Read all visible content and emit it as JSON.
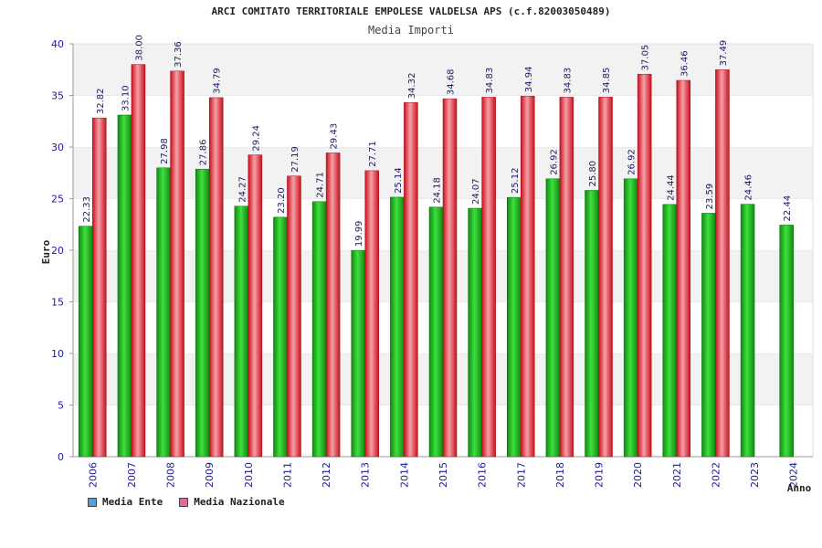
{
  "chart_data": {
    "type": "bar",
    "title": "ARCI COMITATO TERRITORIALE EMPOLESE VALDELSA APS (c.f.82003050489)",
    "subtitle": "Media Importi",
    "xlabel": "Anno",
    "ylabel": "Euro",
    "ylim": [
      0,
      40
    ],
    "yticks": [
      0,
      5,
      10,
      15,
      20,
      25,
      30,
      35,
      40
    ],
    "grid": "horizontal bands",
    "legend_position": "bottom-left",
    "categories": [
      "2006",
      "2007",
      "2008",
      "2009",
      "2010",
      "2011",
      "2012",
      "2013",
      "2014",
      "2015",
      "2016",
      "2017",
      "2018",
      "2019",
      "2020",
      "2021",
      "2022",
      "2023",
      "2024"
    ],
    "series": [
      {
        "name": "Media Ente",
        "legend_color": "#5b9bd5",
        "bar_color": "#1fb51f",
        "values": [
          22.33,
          33.1,
          27.98,
          27.86,
          24.27,
          23.2,
          24.71,
          19.99,
          25.14,
          24.18,
          24.07,
          25.12,
          26.92,
          25.8,
          26.92,
          24.44,
          23.59,
          24.46,
          22.44
        ],
        "labels": [
          "22.33",
          "33.10",
          "27.98",
          "27.86",
          "24.27",
          "23.20",
          "24.71",
          "19.99",
          "25.14",
          "24.18",
          "24.07",
          "25.12",
          "26.92",
          "25.80",
          "26.92",
          "24.44",
          "23.59",
          "24.46",
          "22.44"
        ]
      },
      {
        "name": "Media Nazionale",
        "legend_color": "#e06aa0",
        "bar_color": "#e81c2c",
        "values": [
          32.82,
          38.0,
          37.36,
          34.79,
          29.24,
          27.19,
          29.43,
          27.71,
          34.32,
          34.68,
          34.83,
          34.94,
          34.83,
          34.85,
          37.05,
          36.46,
          37.49,
          null,
          null
        ],
        "labels": [
          "32.82",
          "38.00",
          "37.36",
          "34.79",
          "29.24",
          "27.19",
          "29.43",
          "27.71",
          "34.32",
          "34.68",
          "34.83",
          "34.94",
          "34.83",
          "34.85",
          "37.05",
          "36.46",
          "37.49",
          null,
          null
        ]
      }
    ]
  }
}
